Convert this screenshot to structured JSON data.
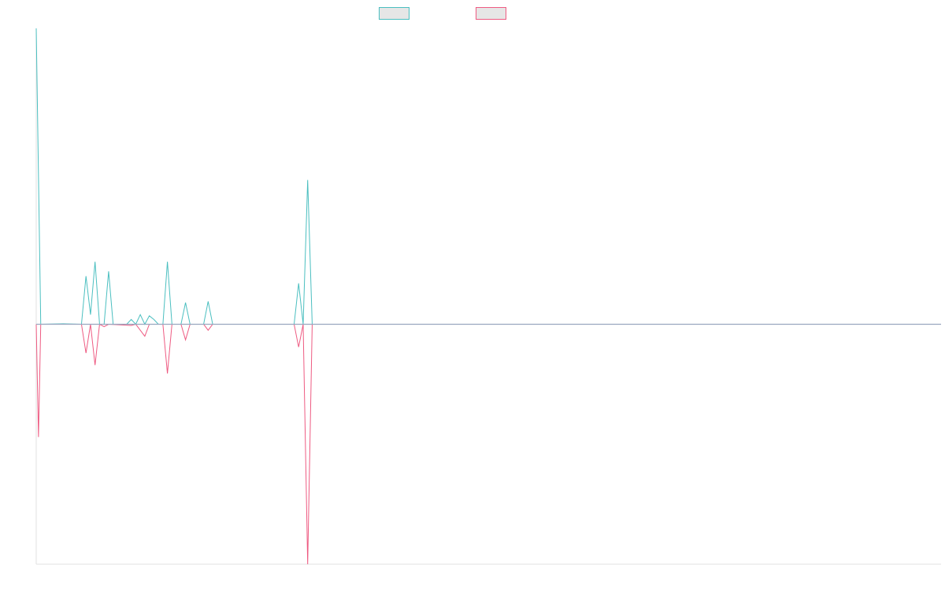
{
  "chart_data": {
    "type": "line",
    "title": "",
    "xlabel": "",
    "ylabel": "",
    "grid": false,
    "legend_position": "top-center",
    "ylim": [
      -100,
      123
    ],
    "x_count": 201,
    "baseline_value": 0,
    "series": [
      {
        "color": "#4bbfc0",
        "points": [
          [
            0,
            123
          ],
          [
            1,
            0
          ],
          [
            6,
            0.2
          ],
          [
            10,
            0
          ],
          [
            11,
            20
          ],
          [
            12,
            4
          ],
          [
            13,
            26
          ],
          [
            14,
            0
          ],
          [
            15,
            0
          ],
          [
            16,
            22
          ],
          [
            17,
            0
          ],
          [
            18,
            0
          ],
          [
            19,
            0
          ],
          [
            20,
            0
          ],
          [
            21,
            2
          ],
          [
            22,
            0
          ],
          [
            23,
            4
          ],
          [
            24,
            0
          ],
          [
            25,
            3.5
          ],
          [
            26,
            2
          ],
          [
            27,
            0
          ],
          [
            28,
            0
          ],
          [
            29,
            26
          ],
          [
            30,
            0
          ],
          [
            31,
            0
          ],
          [
            32,
            0
          ],
          [
            33,
            9
          ],
          [
            34,
            0
          ],
          [
            37,
            0
          ],
          [
            38,
            9.5
          ],
          [
            39,
            0
          ],
          [
            57,
            0
          ],
          [
            58,
            17
          ],
          [
            59,
            0
          ],
          [
            60,
            60
          ],
          [
            61,
            0
          ],
          [
            200,
            0
          ]
        ]
      },
      {
        "color": "#ee5b82",
        "points": [
          [
            0,
            0
          ],
          [
            0.5,
            -47
          ],
          [
            1,
            0
          ],
          [
            10,
            0
          ],
          [
            11,
            -12
          ],
          [
            12,
            0
          ],
          [
            13,
            -17
          ],
          [
            14,
            0
          ],
          [
            15,
            -1
          ],
          [
            16,
            0
          ],
          [
            21,
            -0.5
          ],
          [
            22,
            0
          ],
          [
            24,
            -5
          ],
          [
            25,
            0
          ],
          [
            28,
            0
          ],
          [
            29,
            -20.5
          ],
          [
            30,
            0
          ],
          [
            32,
            0
          ],
          [
            33,
            -6.5
          ],
          [
            34,
            0
          ],
          [
            37,
            0
          ],
          [
            38,
            -2.5
          ],
          [
            39,
            0
          ],
          [
            57,
            0
          ],
          [
            58,
            -9.5
          ],
          [
            59,
            0
          ],
          [
            60,
            -100
          ],
          [
            61,
            0
          ],
          [
            200,
            0
          ]
        ]
      }
    ],
    "baseline_color": "#9aa7c0"
  }
}
